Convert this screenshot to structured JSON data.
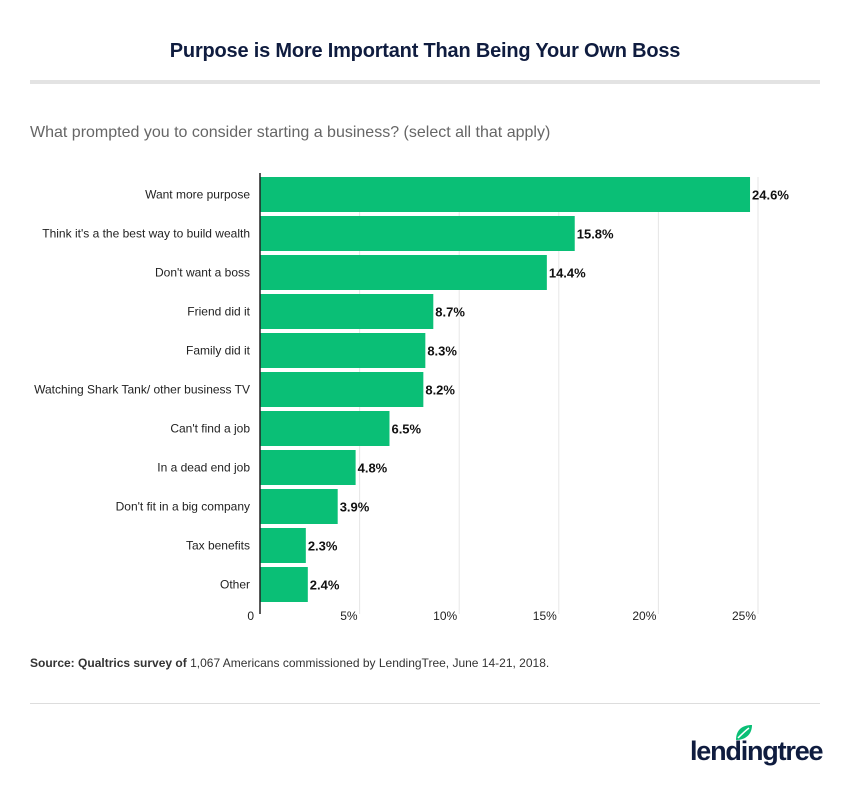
{
  "title": "Purpose is More Important Than Being Your Own Boss",
  "question": "What prompted you to consider starting a business? (select all that apply)",
  "source": {
    "label": "Source:",
    "prefix": "Qualtrics survey of",
    "text": "1,067 Americans commissioned by LendingTree, June 14-21, 2018."
  },
  "logo": {
    "text": "lendingtree",
    "icon": "leaf-icon"
  },
  "colors": {
    "bar": "#0abf76",
    "title": "#0f1c3f",
    "grid": "#e6e6e6"
  },
  "chart_data": {
    "type": "bar",
    "orientation": "horizontal",
    "title": "Purpose is More Important Than Being Your Own Boss",
    "categories": [
      "Want more purpose",
      "Think it's a the best way to build wealth",
      "Don't want a boss",
      "Friend did it",
      "Family did it",
      "Watching Shark Tank/ other business TV",
      "Can't find a job",
      "In a dead end job",
      "Don't fit in a big company",
      "Tax benefits",
      "Other"
    ],
    "values": [
      24.6,
      15.8,
      14.4,
      8.7,
      8.3,
      8.2,
      6.5,
      4.8,
      3.9,
      2.3,
      2.4
    ],
    "value_labels": [
      "24.6%",
      "15.8%",
      "14.4%",
      "8.7%",
      "8.3%",
      "8.2%",
      "6.5%",
      "4.8%",
      "3.9%",
      "2.3%",
      "2.4%"
    ],
    "xlim": [
      0,
      25
    ],
    "xticks": [
      0,
      5,
      10,
      15,
      20,
      25
    ],
    "xtick_labels": [
      "0",
      "5%",
      "10%",
      "15%",
      "20%",
      "25%"
    ],
    "grid": true,
    "legend": "none"
  }
}
